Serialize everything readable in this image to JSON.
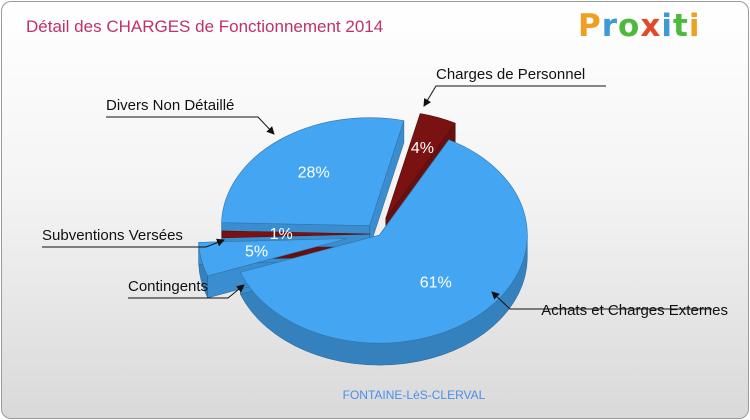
{
  "header": {
    "title": "Détail des CHARGES de Fonctionnement 2014",
    "brand_letters": [
      {
        "ch": "P",
        "color": "#f0a020"
      },
      {
        "ch": "r",
        "color": "#3e9ad6"
      },
      {
        "ch": "o",
        "color": "#4cba3a"
      },
      {
        "ch": "x",
        "color": "#e04a2a"
      },
      {
        "ch": "i",
        "color": "#3e9ad6"
      },
      {
        "ch": "t",
        "color": "#4cba3a"
      },
      {
        "ch": "i",
        "color": "#f0a020"
      }
    ]
  },
  "footer": {
    "commune": "FONTAINE-LèS-CLERVAL"
  },
  "chart_data": {
    "type": "pie",
    "title": "Détail des CHARGES de Fonctionnement 2014",
    "style": "3d-exploded",
    "slices": [
      {
        "label": "Achats et Charges Externes",
        "value": 61,
        "pct_label": "61%",
        "color": "#44a6f2"
      },
      {
        "label": "Contingents",
        "value": 5,
        "pct_label": "5%",
        "color": "#44a6f2"
      },
      {
        "label": "Subventions Versées",
        "value": 1,
        "pct_label": "1%",
        "color": "#7a1212"
      },
      {
        "label": "Divers Non Détaillé",
        "value": 28,
        "pct_label": "28%",
        "color": "#44a6f2"
      },
      {
        "label": "Charges de Personnel",
        "value": 4,
        "pct_label": "4%",
        "color": "#7a1212"
      }
    ]
  }
}
